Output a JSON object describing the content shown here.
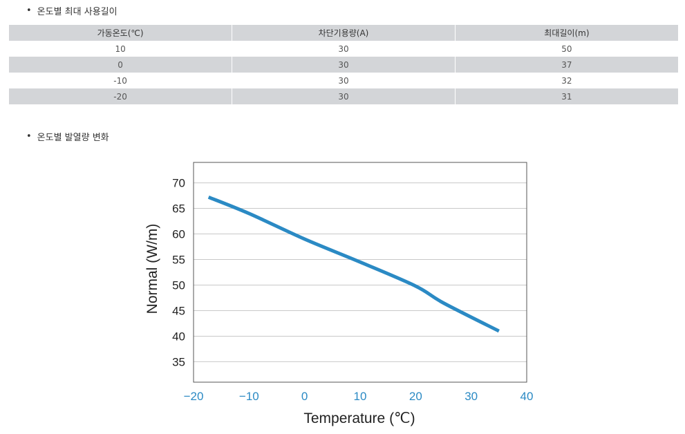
{
  "sections": {
    "bullet": "•",
    "table_title": "온도별 최대 사용길이",
    "chart_title": "온도별 발열량 변화"
  },
  "table": {
    "headers": [
      "가동온도(℃)",
      "차단기용량(A)",
      "최대길이(m)"
    ],
    "rows": [
      [
        "10",
        "30",
        "50"
      ],
      [
        "0",
        "30",
        "37"
      ],
      [
        "-10",
        "30",
        "32"
      ],
      [
        "-20",
        "30",
        "31"
      ]
    ]
  },
  "chart_data": {
    "type": "line",
    "title": "",
    "xlabel": "Temperature (℃)",
    "ylabel": "Normal (W/m)",
    "xlim": [
      -20,
      40
    ],
    "ylim": [
      31,
      74
    ],
    "x_ticks": [
      -20,
      -10,
      0,
      10,
      20,
      30,
      40
    ],
    "x_tick_labels": [
      "−20",
      "−10",
      "0",
      "10",
      "20",
      "30",
      "40"
    ],
    "y_ticks": [
      35,
      40,
      45,
      50,
      55,
      60,
      65,
      70
    ],
    "grid": true,
    "series": [
      {
        "color": "#2b8ac4",
        "x": [
          -17.3,
          -10,
          0,
          10,
          20,
          25,
          35
        ],
        "y": [
          67.2,
          64,
          59,
          54.5,
          49.8,
          46.5,
          41
        ]
      }
    ]
  }
}
